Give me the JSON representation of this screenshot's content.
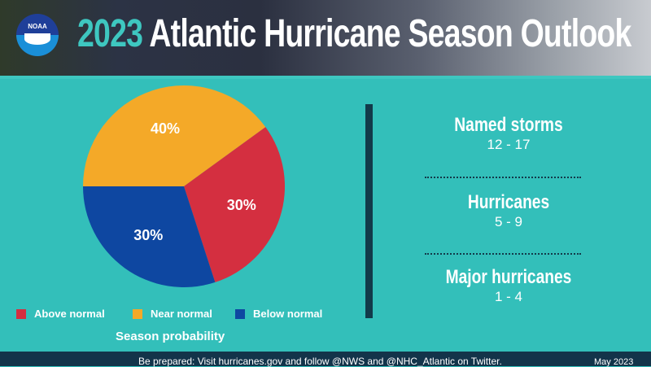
{
  "header": {
    "title_year": "2023",
    "title_rest": " Atlantic Hurricane Season Outlook",
    "logo": "NOAA"
  },
  "chart_data": {
    "type": "pie",
    "caption": "Season probability",
    "slices": [
      {
        "name": "Near normal",
        "value": 40,
        "label": "40%",
        "color": "#f4a928"
      },
      {
        "name": "Above normal",
        "value": 30,
        "label": "30%",
        "color": "#d42f40"
      },
      {
        "name": "Below normal",
        "value": 30,
        "label": "30%",
        "color": "#0e47a1"
      }
    ],
    "legend": [
      {
        "name": "Above normal",
        "color": "#d42f40"
      },
      {
        "name": "Near normal",
        "color": "#f4a928"
      },
      {
        "name": "Below normal",
        "color": "#0e47a1"
      }
    ],
    "legend_position": "bottom"
  },
  "stats": [
    {
      "label": "Named storms",
      "value": "12 - 17"
    },
    {
      "label": "Hurricanes",
      "value": "5 - 9"
    },
    {
      "label": "Major hurricanes",
      "value": "1 - 4"
    }
  ],
  "footer": {
    "text": "Be prepared: Visit hurricanes.gov and follow @NWS and @NHC_Atlantic on Twitter.",
    "date": "May 2023"
  }
}
